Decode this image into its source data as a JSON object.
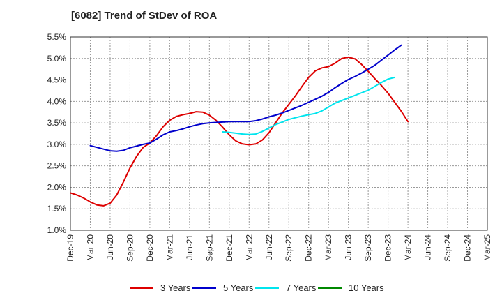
{
  "title": "[6082]  Trend of StDev of ROA",
  "chart_data": {
    "type": "line",
    "title": "[6082]  Trend of StDev of ROA",
    "xlabel": "",
    "ylabel": "",
    "ylim": [
      1.0,
      5.5
    ],
    "grid": true,
    "legend_position": "bottom",
    "x_ticks": [
      "Dec-19",
      "Mar-20",
      "Jun-20",
      "Sep-20",
      "Dec-20",
      "Mar-21",
      "Jun-21",
      "Sep-21",
      "Dec-21",
      "Mar-22",
      "Jun-22",
      "Sep-22",
      "Dec-22",
      "Mar-23",
      "Jun-23",
      "Sep-23",
      "Dec-23",
      "Mar-24",
      "Jun-24",
      "Sep-24",
      "Dec-24",
      "Mar-25"
    ],
    "y_ticks": [
      "1.0%",
      "1.5%",
      "2.0%",
      "2.5%",
      "3.0%",
      "3.5%",
      "4.0%",
      "4.5%",
      "5.0%",
      "5.5%"
    ],
    "series": [
      {
        "name": "3 Years",
        "color": "#dd0000",
        "start_index": 0,
        "values": [
          1.87,
          1.82,
          1.75,
          1.66,
          1.59,
          1.57,
          1.63,
          1.82,
          2.12,
          2.45,
          2.72,
          2.93,
          3.03,
          3.2,
          3.41,
          3.56,
          3.65,
          3.69,
          3.72,
          3.76,
          3.75,
          3.68,
          3.56,
          3.4,
          3.22,
          3.08,
          3.01,
          2.99,
          3.01,
          3.1,
          3.27,
          3.5,
          3.73,
          3.93,
          4.13,
          4.35,
          4.56,
          4.71,
          4.78,
          4.81,
          4.89,
          5.0,
          5.03,
          4.99,
          4.86,
          4.7,
          4.53,
          4.37,
          4.19,
          3.98,
          3.77,
          3.53
        ]
      },
      {
        "name": "5 Years",
        "color": "#0000cc",
        "start_index": 3,
        "values": [
          2.97,
          2.93,
          2.89,
          2.85,
          2.84,
          2.86,
          2.92,
          2.96,
          3.0,
          3.03,
          3.12,
          3.22,
          3.29,
          3.32,
          3.36,
          3.41,
          3.45,
          3.48,
          3.5,
          3.51,
          3.52,
          3.53,
          3.53,
          3.53,
          3.53,
          3.55,
          3.59,
          3.64,
          3.68,
          3.73,
          3.79,
          3.85,
          3.91,
          3.98,
          4.05,
          4.12,
          4.21,
          4.32,
          4.42,
          4.51,
          4.58,
          4.66,
          4.75,
          4.84,
          4.96,
          5.08,
          5.2,
          5.31
        ]
      },
      {
        "name": "7 Years",
        "color": "#00e5ee",
        "start_index": 23,
        "values": [
          3.29,
          3.28,
          3.26,
          3.24,
          3.23,
          3.24,
          3.3,
          3.38,
          3.46,
          3.52,
          3.58,
          3.62,
          3.66,
          3.69,
          3.72,
          3.78,
          3.87,
          3.96,
          4.02,
          4.08,
          4.14,
          4.2,
          4.26,
          4.35,
          4.44,
          4.52,
          4.56
        ]
      },
      {
        "name": "10 Years",
        "color": "#008800",
        "start_index": 0,
        "values": []
      }
    ]
  }
}
